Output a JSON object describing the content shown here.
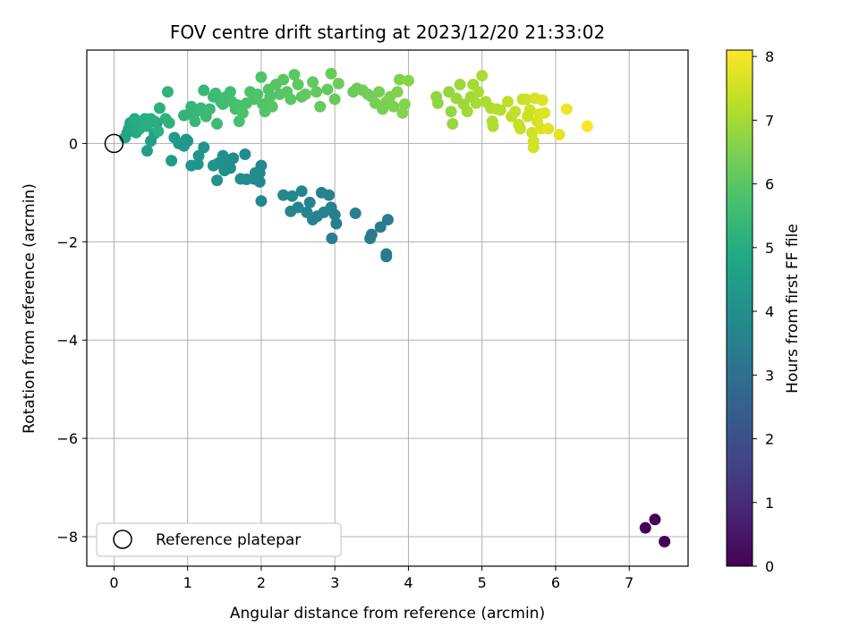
{
  "chart_data": {
    "type": "scatter",
    "title": "FOV centre drift starting at 2023/12/20 21:33:02",
    "xlabel": "Angular distance from reference (arcmin)",
    "ylabel": "Rotation from reference (arcmin)",
    "xlim": [
      -0.37,
      7.8
    ],
    "ylim": [
      -8.6,
      1.9
    ],
    "xticks": [
      0,
      1,
      2,
      3,
      4,
      5,
      6,
      7
    ],
    "yticks": [
      -8,
      -6,
      -4,
      -2,
      0
    ],
    "grid": true,
    "colormap": "viridis",
    "colorbar": {
      "label": "Hours from first FF file",
      "range": [
        0,
        8.1
      ],
      "ticks": [
        0,
        1,
        2,
        3,
        4,
        5,
        6,
        7,
        8
      ]
    },
    "reference": {
      "x": 0,
      "y": 0,
      "label": "Reference platepar"
    },
    "legend": {
      "position": "lower-left",
      "entries": [
        "Reference platepar"
      ]
    },
    "series": [
      {
        "points": [
          [
            7.22,
            -7.82,
            0.05
          ],
          [
            7.35,
            -7.65,
            0.05
          ],
          [
            7.48,
            -8.1,
            0.05
          ],
          [
            3.7,
            -2.3,
            3.3
          ],
          [
            3.7,
            -2.25,
            3.3
          ],
          [
            3.72,
            -1.55,
            3.35
          ],
          [
            3.62,
            -1.7,
            3.35
          ],
          [
            3.5,
            -1.85,
            3.35
          ],
          [
            3.48,
            -1.93,
            3.35
          ],
          [
            3.28,
            -1.42,
            3.45
          ],
          [
            3.02,
            -1.63,
            3.45
          ],
          [
            2.96,
            -1.93,
            3.45
          ],
          [
            3.0,
            -1.45,
            3.5
          ],
          [
            2.95,
            -1.3,
            3.5
          ],
          [
            2.92,
            -1.05,
            3.55
          ],
          [
            2.82,
            -1.0,
            3.55
          ],
          [
            2.76,
            -1.48,
            3.55
          ],
          [
            2.85,
            -1.4,
            3.6
          ],
          [
            2.7,
            -1.55,
            3.6
          ],
          [
            2.66,
            -1.2,
            3.6
          ],
          [
            2.62,
            -1.4,
            3.65
          ],
          [
            2.55,
            -0.97,
            3.65
          ],
          [
            2.5,
            -1.3,
            3.65
          ],
          [
            2.42,
            -1.07,
            3.7
          ],
          [
            2.4,
            -1.38,
            3.7
          ],
          [
            2.3,
            -1.05,
            3.75
          ],
          [
            2.0,
            -0.45,
            3.75
          ],
          [
            1.98,
            -0.6,
            3.8
          ],
          [
            1.98,
            -0.78,
            3.8
          ],
          [
            2.0,
            -1.17,
            3.8
          ],
          [
            1.92,
            -0.6,
            3.85
          ],
          [
            1.9,
            -0.72,
            3.85
          ],
          [
            1.8,
            -0.73,
            3.9
          ],
          [
            1.78,
            -0.22,
            3.9
          ],
          [
            1.72,
            -0.72,
            3.95
          ],
          [
            1.62,
            -0.3,
            3.95
          ],
          [
            1.58,
            -0.5,
            4.0
          ],
          [
            1.55,
            -0.42,
            4.0
          ],
          [
            1.5,
            -0.55,
            4.0
          ],
          [
            1.48,
            -0.25,
            4.05
          ],
          [
            1.42,
            -0.4,
            4.05
          ],
          [
            1.4,
            -0.75,
            4.1
          ],
          [
            1.35,
            -0.45,
            4.1
          ],
          [
            1.22,
            -0.08,
            4.15
          ],
          [
            1.15,
            -0.25,
            4.15
          ],
          [
            1.14,
            -0.42,
            4.2
          ],
          [
            1.05,
            -0.45,
            4.2
          ],
          [
            1.0,
            0.05,
            4.25
          ],
          [
            0.98,
            0.08,
            4.25
          ],
          [
            0.95,
            -0.05,
            4.3
          ],
          [
            0.88,
            0.0,
            4.3
          ],
          [
            0.82,
            0.12,
            4.35
          ],
          [
            0.78,
            -0.35,
            4.35
          ],
          [
            0.45,
            -0.15,
            4.5
          ],
          [
            0.5,
            0.05,
            4.55
          ],
          [
            0.55,
            0.2,
            4.6
          ],
          [
            0.58,
            0.42,
            4.6
          ],
          [
            0.15,
            0.12,
            4.7
          ],
          [
            0.18,
            0.22,
            4.75
          ],
          [
            0.2,
            0.3,
            4.8
          ],
          [
            0.22,
            0.42,
            4.85
          ],
          [
            0.25,
            0.35,
            4.85
          ],
          [
            0.28,
            0.5,
            4.9
          ],
          [
            0.3,
            0.22,
            4.9
          ],
          [
            0.32,
            0.45,
            4.95
          ],
          [
            0.35,
            0.3,
            4.95
          ],
          [
            0.38,
            0.4,
            5.0
          ],
          [
            0.42,
            0.5,
            5.0
          ],
          [
            0.45,
            0.35,
            5.05
          ],
          [
            0.5,
            0.5,
            5.05
          ],
          [
            0.55,
            0.45,
            5.1
          ],
          [
            0.6,
            0.25,
            5.1
          ],
          [
            0.62,
            0.72,
            5.15
          ],
          [
            0.7,
            0.5,
            5.15
          ],
          [
            0.75,
            0.42,
            5.2
          ],
          [
            0.73,
            1.05,
            5.2
          ],
          [
            0.95,
            0.57,
            5.25
          ],
          [
            1.02,
            0.6,
            5.3
          ],
          [
            1.05,
            0.75,
            5.3
          ],
          [
            1.1,
            0.45,
            5.35
          ],
          [
            1.12,
            0.65,
            5.35
          ],
          [
            1.18,
            0.72,
            5.4
          ],
          [
            1.22,
            1.08,
            5.4
          ],
          [
            1.25,
            0.55,
            5.45
          ],
          [
            1.3,
            0.7,
            5.45
          ],
          [
            1.35,
            0.95,
            5.5
          ],
          [
            1.38,
            1.02,
            5.5
          ],
          [
            1.4,
            0.4,
            5.5
          ],
          [
            1.45,
            0.85,
            5.55
          ],
          [
            1.48,
            0.8,
            5.55
          ],
          [
            1.52,
            0.95,
            5.6
          ],
          [
            1.58,
            1.05,
            5.6
          ],
          [
            1.6,
            0.85,
            5.65
          ],
          [
            1.65,
            0.7,
            5.65
          ],
          [
            1.68,
            0.78,
            5.7
          ],
          [
            1.7,
            0.45,
            5.7
          ],
          [
            1.75,
            0.62,
            5.75
          ],
          [
            1.8,
            0.82,
            5.75
          ],
          [
            1.85,
            1.05,
            5.8
          ],
          [
            1.9,
            0.9,
            5.8
          ],
          [
            1.95,
            1.0,
            5.85
          ],
          [
            2.0,
            1.35,
            5.85
          ],
          [
            2.02,
            0.8,
            5.85
          ],
          [
            2.05,
            0.65,
            5.9
          ],
          [
            2.1,
            1.1,
            5.9
          ],
          [
            2.12,
            0.95,
            5.9
          ],
          [
            2.15,
            0.75,
            5.95
          ],
          [
            2.2,
            1.2,
            5.95
          ],
          [
            2.25,
            1.0,
            5.95
          ],
          [
            2.3,
            1.3,
            6.0
          ],
          [
            2.35,
            1.05,
            6.0
          ],
          [
            2.4,
            0.9,
            6.0
          ],
          [
            2.45,
            1.4,
            6.05
          ],
          [
            2.5,
            1.2,
            6.05
          ],
          [
            2.55,
            0.95,
            6.05
          ],
          [
            2.6,
            1.0,
            6.1
          ],
          [
            2.7,
            1.25,
            6.1
          ],
          [
            2.75,
            1.05,
            6.1
          ],
          [
            2.8,
            0.75,
            6.15
          ],
          [
            2.9,
            1.1,
            6.15
          ],
          [
            2.95,
            1.42,
            6.2
          ],
          [
            3.0,
            0.9,
            6.2
          ],
          [
            3.05,
            1.22,
            6.25
          ],
          [
            3.25,
            1.05,
            6.25
          ],
          [
            3.3,
            1.12,
            6.3
          ],
          [
            3.38,
            1.08,
            6.3
          ],
          [
            3.45,
            1.0,
            6.35
          ],
          [
            3.5,
            0.95,
            6.35
          ],
          [
            3.55,
            0.82,
            6.4
          ],
          [
            3.6,
            1.05,
            6.4
          ],
          [
            3.65,
            0.7,
            6.45
          ],
          [
            3.7,
            0.85,
            6.45
          ],
          [
            3.75,
            0.95,
            6.5
          ],
          [
            3.8,
            0.75,
            6.5
          ],
          [
            3.85,
            1.05,
            6.55
          ],
          [
            3.88,
            1.3,
            6.55
          ],
          [
            3.92,
            0.62,
            6.6
          ],
          [
            3.95,
            0.8,
            6.6
          ],
          [
            4.0,
            1.28,
            6.65
          ],
          [
            4.38,
            0.95,
            6.75
          ],
          [
            4.4,
            0.82,
            6.75
          ],
          [
            4.55,
            1.05,
            6.8
          ],
          [
            4.58,
            0.65,
            6.8
          ],
          [
            4.6,
            0.4,
            6.85
          ],
          [
            4.65,
            0.92,
            6.85
          ],
          [
            4.7,
            1.2,
            6.9
          ],
          [
            4.75,
            0.8,
            6.9
          ],
          [
            4.8,
            0.65,
            6.95
          ],
          [
            4.85,
            0.95,
            6.95
          ],
          [
            4.88,
            1.2,
            7.0
          ],
          [
            4.92,
            0.82,
            7.0
          ],
          [
            4.95,
            1.05,
            7.05
          ],
          [
            5.0,
            1.38,
            7.05
          ],
          [
            5.05,
            0.85,
            7.1
          ],
          [
            5.12,
            0.72,
            7.1
          ],
          [
            5.14,
            0.45,
            7.15
          ],
          [
            5.15,
            0.35,
            7.15
          ],
          [
            5.2,
            0.7,
            7.2
          ],
          [
            5.25,
            0.68,
            7.2
          ],
          [
            5.35,
            0.85,
            7.3
          ],
          [
            5.4,
            0.55,
            7.3
          ],
          [
            5.45,
            0.65,
            7.35
          ],
          [
            5.5,
            0.38,
            7.35
          ],
          [
            5.52,
            0.3,
            7.4
          ],
          [
            5.55,
            0.9,
            7.4
          ],
          [
            5.6,
            0.9,
            7.45
          ],
          [
            5.62,
            0.55,
            7.45
          ],
          [
            5.65,
            0.68,
            7.5
          ],
          [
            5.68,
            0.22,
            7.5
          ],
          [
            5.7,
            0.05,
            7.55
          ],
          [
            5.7,
            -0.08,
            7.55
          ],
          [
            5.72,
            0.92,
            7.6
          ],
          [
            5.75,
            0.45,
            7.6
          ],
          [
            5.78,
            0.6,
            7.65
          ],
          [
            5.8,
            0.3,
            7.65
          ],
          [
            5.82,
            0.88,
            7.7
          ],
          [
            5.85,
            0.62,
            7.7
          ],
          [
            5.9,
            0.3,
            7.75
          ],
          [
            6.05,
            0.18,
            7.8
          ],
          [
            6.15,
            0.7,
            7.9
          ],
          [
            6.43,
            0.35,
            8.05
          ]
        ]
      }
    ]
  }
}
